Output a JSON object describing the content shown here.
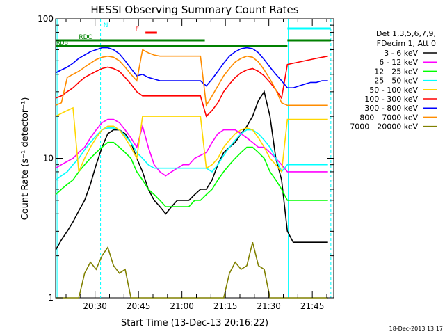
{
  "chart_data": {
    "type": "line",
    "title": "HESSI Observing Summary Count Rates",
    "xlabel": "Start Time (13-Dec-13 20:16:22)",
    "ylabel": "Count Rate (s⁻¹ detector⁻¹)",
    "x_unit": "minutes after 20:16:22",
    "xlim": [
      0,
      96
    ],
    "ylim": [
      1,
      100
    ],
    "yscale": "log",
    "x_ticks": [
      {
        "x": 13.6,
        "label": "20:30"
      },
      {
        "x": 28.6,
        "label": "20:45"
      },
      {
        "x": 43.6,
        "label": "21:00"
      },
      {
        "x": 58.6,
        "label": "21:15"
      },
      {
        "x": 73.6,
        "label": "21:30"
      },
      {
        "x": 88.6,
        "label": "21:45"
      }
    ],
    "y_ticks": [
      {
        "y": 1,
        "label": "1"
      },
      {
        "y": 10,
        "label": "10"
      },
      {
        "y": 100,
        "label": "100"
      }
    ],
    "legend": {
      "position": "right",
      "header": [
        "Det 1,3,5,6,7,9,",
        "FDecim 1, Att 0"
      ]
    },
    "flags": [
      {
        "label": "N",
        "color": "#00ffff",
        "segments": [
          [
            80,
            95
          ]
        ]
      },
      {
        "label": "F",
        "color": "#ff0000",
        "segments": [
          [
            31,
            35
          ]
        ]
      },
      {
        "label": "RDO",
        "color": "#008000",
        "segments": [
          [
            0,
            51.5
          ],
          [
            80,
            95
          ]
        ]
      },
      {
        "label": "RDB",
        "color": "#008000",
        "segments": [
          [
            0,
            80
          ]
        ]
      }
    ],
    "vertical_markers": [
      {
        "x": 0.5,
        "style": "solid",
        "color": "#00ffff"
      },
      {
        "x": 15.5,
        "style": "dashed",
        "color": "#00ffff"
      },
      {
        "x": 80.3,
        "style": "solid",
        "color": "#00ffff"
      },
      {
        "x": 95,
        "style": "dashed",
        "color": "#00ffff"
      }
    ],
    "series": [
      {
        "name": "3 - 6 keV",
        "color": "#000000",
        "x": [
          0,
          2,
          4,
          6,
          8,
          10,
          12,
          14,
          16,
          18,
          20,
          22,
          24,
          26,
          28,
          30,
          32,
          34,
          36,
          38,
          40,
          42,
          44,
          46,
          48,
          50,
          52,
          54,
          56,
          58,
          60,
          62,
          64,
          66,
          68,
          70,
          72,
          74,
          76,
          78,
          80,
          82,
          84,
          86,
          88,
          90,
          92,
          94
        ],
        "y": [
          2.2,
          2.6,
          3,
          3.5,
          4.2,
          5,
          6.5,
          9,
          12,
          15,
          16,
          16,
          15,
          13,
          10,
          8,
          6,
          5,
          4.5,
          4,
          4.5,
          5,
          5,
          5,
          5.5,
          6,
          6,
          7,
          9,
          11,
          12,
          13,
          15,
          17,
          20,
          26,
          30,
          20,
          10,
          7,
          3,
          2.5,
          2.5,
          2.5,
          2.5,
          2.5,
          2.5,
          2.5
        ]
      },
      {
        "name": "6 - 12 keV",
        "color": "#ff00ff",
        "x": [
          0,
          2,
          4,
          6,
          8,
          10,
          12,
          14,
          16,
          18,
          20,
          22,
          24,
          26,
          28,
          30,
          32,
          34,
          36,
          38,
          40,
          42,
          44,
          46,
          48,
          50,
          52,
          54,
          56,
          58,
          60,
          62,
          64,
          66,
          68,
          70,
          72,
          74,
          76,
          78,
          80,
          82,
          84,
          86,
          88,
          90,
          92,
          94
        ],
        "y": [
          8.5,
          9,
          9.5,
          10,
          11,
          12,
          14,
          16,
          18,
          19,
          19,
          18,
          16,
          14,
          12,
          17,
          12,
          9,
          8,
          7.5,
          8,
          8.5,
          9,
          9,
          10,
          10.5,
          11,
          13,
          15,
          16,
          16,
          16,
          15,
          14,
          13,
          12,
          12,
          11,
          10,
          9,
          8,
          8,
          8,
          8,
          8,
          8,
          8,
          8
        ]
      },
      {
        "name": "12 - 25 keV",
        "color": "#00ff00",
        "x": [
          0,
          2,
          4,
          6,
          8,
          10,
          12,
          14,
          16,
          18,
          20,
          22,
          24,
          26,
          28,
          30,
          32,
          34,
          36,
          38,
          40,
          42,
          44,
          46,
          48,
          50,
          52,
          54,
          56,
          58,
          60,
          62,
          64,
          66,
          68,
          70,
          72,
          74,
          76,
          78,
          80,
          82,
          84,
          86,
          88,
          90,
          92,
          94
        ],
        "y": [
          5.5,
          6,
          6.5,
          7,
          8,
          9,
          10,
          11,
          12,
          13,
          13,
          12,
          11,
          10,
          8,
          7,
          6,
          5.5,
          5,
          4.5,
          4.5,
          4.5,
          4.5,
          4.5,
          5,
          5,
          5.5,
          6,
          7,
          8,
          9,
          10,
          11,
          12,
          12,
          11,
          10,
          8,
          7,
          6,
          5,
          5,
          5,
          5,
          5,
          5,
          5,
          5
        ]
      },
      {
        "name": "25 - 50 keV",
        "color": "#00ffff",
        "x": [
          0,
          2,
          4,
          6,
          8,
          10,
          12,
          14,
          16,
          18,
          20,
          22,
          24,
          26,
          28,
          30,
          32,
          34,
          36,
          38,
          40,
          42,
          44,
          46,
          48,
          50,
          52,
          54,
          56,
          58,
          60,
          62,
          64,
          66,
          68,
          70,
          72,
          74,
          76,
          78,
          80,
          82,
          84,
          86,
          88,
          90,
          92,
          94
        ],
        "y": [
          7,
          7.5,
          8,
          9,
          10,
          11.5,
          13,
          14.5,
          16,
          16.5,
          16.5,
          16,
          14.5,
          13,
          11,
          10,
          9,
          8.5,
          8.5,
          8.5,
          8.5,
          8.5,
          8.5,
          8.5,
          8.5,
          8.5,
          8.5,
          8,
          9,
          10.5,
          12,
          13.5,
          15,
          16,
          16,
          15,
          13.5,
          12,
          10,
          8,
          9,
          9,
          9,
          9,
          9,
          9,
          9,
          9
        ]
      },
      {
        "name": "50 - 100 keV",
        "color": "#ffd700",
        "x": [
          0,
          2,
          4,
          6,
          8,
          10,
          12,
          14,
          16,
          18,
          20,
          22,
          24,
          26,
          28,
          30,
          32,
          34,
          36,
          38,
          40,
          42,
          44,
          46,
          48,
          50,
          52,
          54,
          56,
          58,
          60,
          62,
          64,
          66,
          68,
          70,
          72,
          74,
          76,
          78,
          80,
          82,
          84,
          86,
          88,
          90,
          92,
          94
        ],
        "y": [
          20,
          21,
          22,
          23,
          8,
          10,
          12,
          14,
          16,
          17,
          17,
          16,
          14,
          12,
          10,
          20,
          20,
          20,
          20,
          20,
          20,
          20,
          20,
          20,
          20,
          20,
          8.5,
          9,
          10,
          12,
          13.5,
          15,
          16,
          16.5,
          16,
          14,
          12,
          10,
          9,
          8,
          19,
          19,
          19,
          19,
          19,
          19,
          19,
          19
        ]
      },
      {
        "name": "100 - 300 keV",
        "color": "#ff0000",
        "x": [
          0,
          2,
          4,
          6,
          8,
          10,
          12,
          14,
          16,
          18,
          20,
          22,
          24,
          26,
          28,
          30,
          32,
          34,
          36,
          38,
          40,
          42,
          44,
          46,
          48,
          50,
          52,
          54,
          56,
          58,
          60,
          62,
          64,
          66,
          68,
          70,
          72,
          74,
          76,
          78,
          80,
          82,
          84,
          86,
          88,
          90,
          92,
          94
        ],
        "y": [
          27,
          28,
          30,
          32,
          35,
          38,
          40,
          42,
          44,
          45,
          44,
          42,
          38,
          34,
          30,
          28,
          28,
          28,
          28,
          28,
          28,
          28,
          28,
          28,
          28,
          28,
          20,
          22,
          25,
          30,
          34,
          38,
          41,
          43,
          44,
          42,
          39,
          35,
          31,
          27,
          47,
          48,
          49,
          50,
          51,
          52,
          53,
          54
        ]
      },
      {
        "name": "300 - 800 keV",
        "color": "#0000ff",
        "x": [
          0,
          2,
          4,
          6,
          8,
          10,
          12,
          14,
          16,
          18,
          20,
          22,
          24,
          26,
          28,
          30,
          32,
          34,
          36,
          38,
          40,
          42,
          44,
          46,
          48,
          50,
          52,
          54,
          56,
          58,
          60,
          62,
          64,
          66,
          68,
          70,
          72,
          74,
          76,
          78,
          80,
          82,
          84,
          86,
          88,
          90,
          92,
          94
        ],
        "y": [
          41,
          43,
          45,
          48,
          52,
          55,
          58,
          60,
          62,
          62,
          60,
          56,
          50,
          44,
          39,
          40,
          38,
          37,
          36,
          36,
          36,
          36,
          36,
          36,
          36,
          36,
          33,
          37,
          42,
          48,
          54,
          58,
          61,
          62,
          61,
          57,
          51,
          45,
          40,
          36,
          32,
          32,
          33,
          34,
          35,
          35,
          36,
          36
        ]
      },
      {
        "name": "800 - 7000 keV",
        "color": "#ff8c00",
        "x": [
          0,
          2,
          4,
          6,
          8,
          10,
          12,
          14,
          16,
          18,
          20,
          22,
          24,
          26,
          28,
          30,
          32,
          34,
          36,
          38,
          40,
          42,
          44,
          46,
          48,
          50,
          52,
          54,
          56,
          58,
          60,
          62,
          64,
          66,
          68,
          70,
          72,
          74,
          76,
          78,
          80,
          82,
          84,
          86,
          88,
          90,
          92,
          94
        ],
        "y": [
          24,
          25,
          38,
          40,
          42,
          45,
          48,
          51,
          53,
          54,
          53,
          50,
          45,
          40,
          36,
          60,
          57,
          55,
          54,
          54,
          54,
          54,
          54,
          54,
          54,
          54,
          24,
          28,
          33,
          39,
          44,
          49,
          52,
          54,
          53,
          49,
          43,
          37,
          31,
          25,
          24,
          24,
          24,
          24,
          24,
          24,
          24,
          24
        ]
      },
      {
        "name": "7000 - 20000 keV",
        "color": "#808000",
        "x": [
          0,
          2,
          4,
          6,
          8,
          10,
          12,
          14,
          16,
          18,
          20,
          22,
          24,
          26,
          28,
          30,
          32,
          34,
          36,
          38,
          40,
          42,
          44,
          46,
          48,
          50,
          52,
          54,
          56,
          58,
          60,
          62,
          64,
          66,
          68,
          70,
          72,
          74,
          76,
          78,
          80,
          82,
          84,
          86,
          88,
          90,
          92,
          94
        ],
        "y": [
          1,
          1,
          1,
          1,
          1,
          1.5,
          1.8,
          1.6,
          2,
          2.3,
          1.7,
          1.5,
          1.6,
          1,
          1,
          1,
          1,
          1,
          1,
          1,
          1,
          1,
          1,
          1,
          1,
          1,
          1,
          1,
          1,
          1,
          1.5,
          1.8,
          1.6,
          1.7,
          2.5,
          1.7,
          1.6,
          1,
          1,
          1,
          1,
          1,
          1,
          1,
          1,
          1,
          1,
          1
        ]
      }
    ]
  },
  "footer": {
    "timestamp": "18-Dec-2013 13:17"
  }
}
